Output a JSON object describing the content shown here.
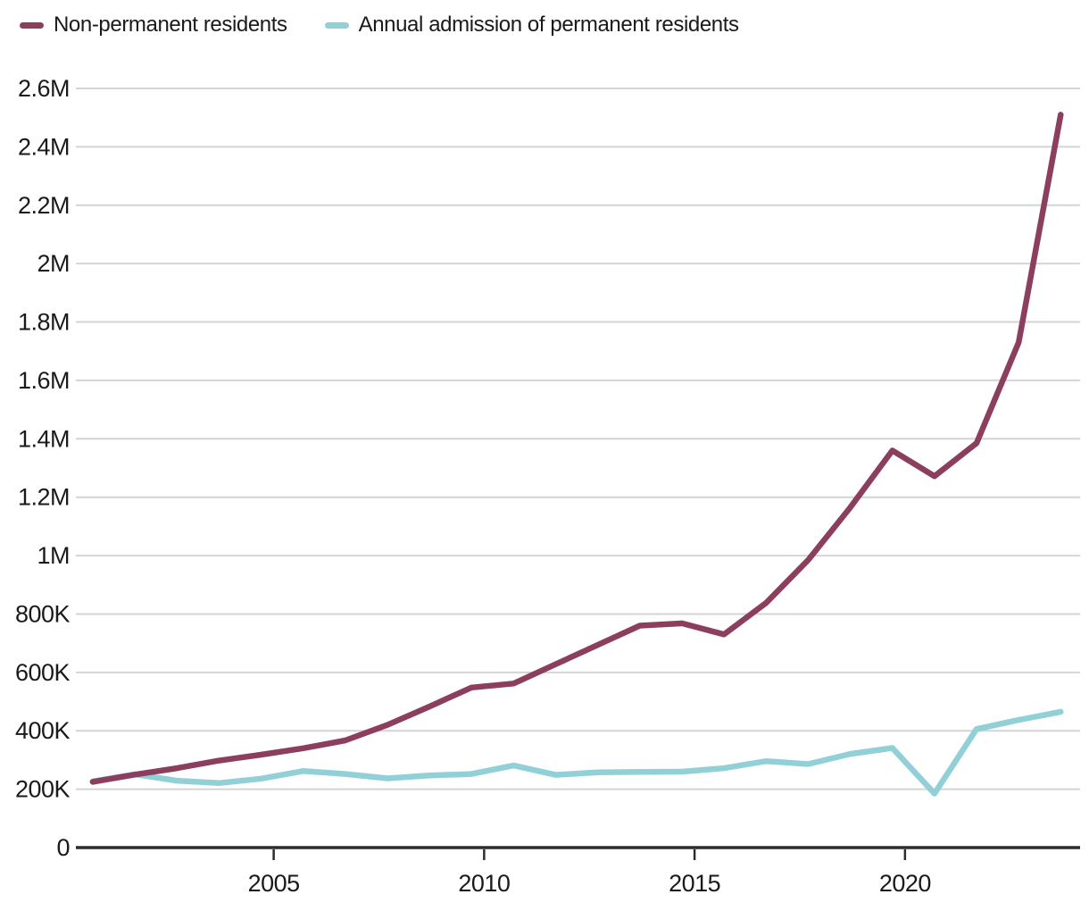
{
  "legend": {
    "items": [
      {
        "label": "Non-permanent residents"
      },
      {
        "label": "Annual admission of permanent residents"
      }
    ]
  },
  "chart_data": {
    "type": "line",
    "title": "",
    "xlabel": "",
    "ylabel": "",
    "x_unit": "year",
    "series": [
      {
        "name": "Non-permanent residents",
        "color": "#8c3e5e",
        "x": [
          2000,
          2001,
          2002,
          2003,
          2004,
          2005,
          2006,
          2007,
          2008,
          2009,
          2010,
          2011,
          2012,
          2013,
          2014,
          2015,
          2016,
          2017,
          2018,
          2019,
          2020,
          2021,
          2022,
          2023
        ],
        "values": [
          225000,
          250000,
          272000,
          298000,
          318000,
          340000,
          367000,
          420000,
          483000,
          548000,
          562000,
          628000,
          694000,
          760000,
          768000,
          730000,
          838000,
          985000,
          1165000,
          1360000,
          1272000,
          1385000,
          1730000,
          2510000
        ]
      },
      {
        "name": "Annual admission of permanent residents",
        "color": "#92d0d8",
        "x": [
          2000,
          2001,
          2002,
          2003,
          2004,
          2005,
          2006,
          2007,
          2008,
          2009,
          2010,
          2011,
          2012,
          2013,
          2014,
          2015,
          2016,
          2017,
          2018,
          2019,
          2020,
          2021,
          2022,
          2023
        ],
        "values": [
          227000,
          251000,
          229000,
          221000,
          236000,
          262000,
          252000,
          237000,
          247000,
          252000,
          281000,
          249000,
          258000,
          259000,
          260000,
          272000,
          296000,
          286000,
          321000,
          341000,
          185000,
          406000,
          437000,
          465000
        ]
      }
    ],
    "y_ticks": [
      {
        "value": 0,
        "label": "0"
      },
      {
        "value": 200000,
        "label": "200K"
      },
      {
        "value": 400000,
        "label": "400K"
      },
      {
        "value": 600000,
        "label": "600K"
      },
      {
        "value": 800000,
        "label": "800K"
      },
      {
        "value": 1000000,
        "label": "1M"
      },
      {
        "value": 1200000,
        "label": "1.2M"
      },
      {
        "value": 1400000,
        "label": "1.4M"
      },
      {
        "value": 1600000,
        "label": "1.6M"
      },
      {
        "value": 1800000,
        "label": "1.8M"
      },
      {
        "value": 2000000,
        "label": "2M"
      },
      {
        "value": 2200000,
        "label": "2.2M"
      },
      {
        "value": 2400000,
        "label": "2.4M"
      },
      {
        "value": 2600000,
        "label": "2.6M"
      }
    ],
    "x_ticks": [
      {
        "value": 2005,
        "label": "2005"
      },
      {
        "value": 2010,
        "label": "2010"
      },
      {
        "value": 2015,
        "label": "2015"
      },
      {
        "value": 2020,
        "label": "2020"
      }
    ],
    "ylim": [
      0,
      2600000
    ],
    "xlim": [
      2000.3,
      2024.16
    ],
    "point_offset_years": 0.7,
    "grid": "horizontal",
    "legend_position": "top-left",
    "colors": {
      "text": "#1a1a1a",
      "axis": "#2d2d2d",
      "gridline": "#d4d4d4",
      "background": "#ffffff"
    }
  }
}
